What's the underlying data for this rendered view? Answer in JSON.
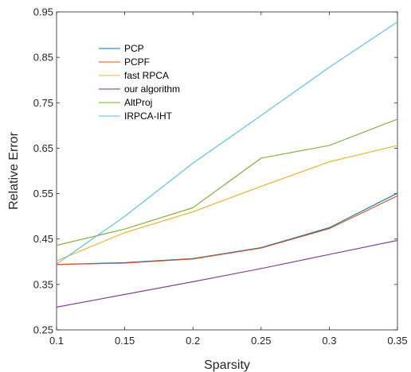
{
  "chart_data": {
    "type": "line",
    "title": "",
    "xlabel": "Sparsity",
    "ylabel": "Relative Error",
    "xlim": [
      0.1,
      0.35
    ],
    "ylim": [
      0.25,
      0.95
    ],
    "x": [
      0.1,
      0.15,
      0.2,
      0.25,
      0.3,
      0.35
    ],
    "x_ticks": [
      "0.1",
      "0.15",
      "0.2",
      "0.25",
      "0.3",
      "0.35"
    ],
    "y_ticks": [
      "0.25",
      "0.35",
      "0.45",
      "0.55",
      "0.65",
      "0.75",
      "0.85",
      "0.95"
    ],
    "grid": false,
    "legend_position": "top-left",
    "series": [
      {
        "name": "PCP",
        "color": "#0072BD",
        "values": [
          0.394,
          0.398,
          0.407,
          0.431,
          0.475,
          0.551
        ]
      },
      {
        "name": "PCPF",
        "color": "#D95319",
        "values": [
          0.394,
          0.397,
          0.406,
          0.43,
          0.473,
          0.545
        ]
      },
      {
        "name": "fast RPCA",
        "color": "#EDB120",
        "values": [
          0.402,
          0.464,
          0.51,
          0.566,
          0.62,
          0.656
        ]
      },
      {
        "name": "our algorithm",
        "color": "#7E2F8E",
        "values": [
          0.3,
          0.328,
          0.356,
          0.385,
          0.416,
          0.447
        ]
      },
      {
        "name": "AltProj",
        "color": "#77AC30",
        "values": [
          0.436,
          0.472,
          0.519,
          0.628,
          0.656,
          0.714
        ]
      },
      {
        "name": "IRPCA-IHT",
        "color": "#4DBEEE",
        "values": [
          0.395,
          0.5,
          0.617,
          0.722,
          0.828,
          0.928
        ]
      }
    ]
  }
}
